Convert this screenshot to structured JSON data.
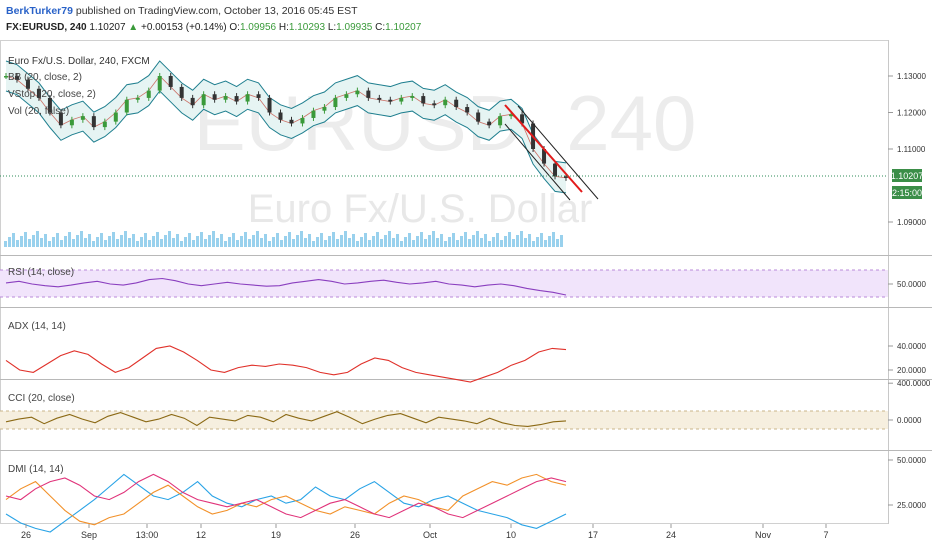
{
  "header": {
    "author": "BerkTurker79",
    "published_text": "published on TradingView.com, October 13, 2016 05:45 EST",
    "symbol": "FX:EURUSD, 240",
    "last": "1.10207",
    "change_arrow": "▲",
    "change": "+0.00153 (+0.14%)",
    "open_label": "O:",
    "open": "1.09956",
    "high_label": "H:",
    "high": "1.10293",
    "low_label": "L:",
    "low": "1.09935",
    "close_label": "C:",
    "close": "1.10207"
  },
  "watermark": {
    "main": "EURUSD, 240",
    "sub": "Euro Fx/U.S. Dollar"
  },
  "legends": {
    "main": "Euro Fx/U.S. Dollar, 240, FXCM",
    "bb": "BB (20, close, 2)",
    "vstop": "VStop (20, close, 2)",
    "vol": "Vol (20, false)",
    "rsi": "RSI (14, close)",
    "adx": "ADX (14, 14)",
    "cci": "CCI (20, close)",
    "dmi": "DMI (14, 14)"
  },
  "price_badge": {
    "price": "1.10207",
    "countdown": "2:15:00"
  },
  "colors": {
    "up": "#3a9a3a",
    "down": "#c0392b",
    "bb": "#1f7f8f",
    "rsi": "#8a3fbf",
    "adx": "#e0312a",
    "cci": "#8b6914",
    "dmi_plus": "#29a3e6",
    "dmi_minus": "#f2912a",
    "dmi_adx": "#e0337a"
  },
  "chart_data": {
    "type": "line",
    "x_axis_labels": [
      "26",
      "Sep",
      "13:00",
      "12",
      "19",
      "26",
      "Oct",
      "10",
      "17",
      "24",
      "Nov",
      "7"
    ],
    "price": {
      "y_ticks": [
        "1.13000",
        "1.12000",
        "1.11000",
        "1.09000"
      ],
      "close": [
        1.13,
        1.129,
        1.1265,
        1.124,
        1.12,
        1.1165,
        1.118,
        1.119,
        1.116,
        1.1175,
        1.12,
        1.1235,
        1.124,
        1.126,
        1.13,
        1.127,
        1.124,
        1.122,
        1.125,
        1.1235,
        1.1245,
        1.123,
        1.125,
        1.124,
        1.12,
        1.118,
        1.117,
        1.1185,
        1.1205,
        1.1215,
        1.124,
        1.125,
        1.126,
        1.124,
        1.1235,
        1.123,
        1.124,
        1.1245,
        1.1225,
        1.122,
        1.1235,
        1.1215,
        1.12,
        1.1175,
        1.1165,
        1.119,
        1.1195,
        1.117,
        1.11,
        1.106,
        1.1025,
        1.1021
      ],
      "last": 1.10207
    },
    "rsi": {
      "y_ticks": [
        "50.0000"
      ],
      "values": [
        52,
        55,
        50,
        47,
        45,
        48,
        52,
        55,
        50,
        48,
        52,
        58,
        60,
        56,
        50,
        47,
        50,
        53,
        50,
        48,
        46,
        47,
        52,
        55,
        58,
        55,
        50,
        52,
        55,
        57,
        53,
        50,
        52,
        55,
        50,
        48,
        45,
        48,
        50,
        47,
        42,
        38,
        35,
        30
      ]
    },
    "adx": {
      "y_ticks": [
        "40.0000",
        "20.0000"
      ],
      "values": [
        28,
        20,
        18,
        25,
        32,
        36,
        33,
        25,
        18,
        22,
        30,
        38,
        40,
        35,
        28,
        20,
        18,
        22,
        24,
        23,
        25,
        24,
        22,
        18,
        16,
        18,
        25,
        30,
        28,
        22,
        18,
        16,
        14,
        12,
        10,
        14,
        18,
        24,
        28,
        35,
        38,
        37
      ]
    },
    "cci": {
      "y_ticks": [
        "400.0000",
        "0.0000"
      ],
      "values": [
        -20,
        10,
        30,
        -40,
        20,
        60,
        10,
        -30,
        40,
        80,
        30,
        -20,
        10,
        60,
        20,
        -60,
        30,
        10,
        -10,
        50,
        30,
        -20,
        60,
        20,
        -10,
        40,
        90,
        30,
        -40,
        10,
        50,
        70,
        20,
        -30,
        30,
        10,
        -10,
        -40,
        20,
        -30,
        -60,
        -70,
        -50,
        -20,
        -10
      ]
    },
    "dmi": {
      "y_ticks": [
        "50.0000",
        "25.0000"
      ],
      "plus_di": [
        20,
        15,
        12,
        10,
        16,
        22,
        28,
        35,
        42,
        36,
        30,
        28,
        32,
        38,
        30,
        26,
        24,
        28,
        30,
        26,
        28,
        35,
        30,
        28,
        34,
        38,
        32,
        26,
        24,
        28,
        30,
        26,
        22,
        20,
        18,
        14,
        12,
        16,
        20
      ],
      "minus_di": [
        28,
        34,
        38,
        30,
        22,
        16,
        14,
        18,
        20,
        26,
        32,
        36,
        30,
        24,
        20,
        22,
        26,
        24,
        28,
        30,
        26,
        22,
        20,
        24,
        22,
        20,
        26,
        30,
        28,
        24,
        22,
        30,
        34,
        38,
        36,
        40,
        42,
        38,
        36
      ],
      "adx": [
        30,
        28,
        34,
        38,
        40,
        36,
        30,
        28,
        32,
        38,
        42,
        38,
        32,
        28,
        26,
        24,
        26,
        28,
        24,
        20,
        18,
        22,
        26,
        28,
        24,
        20,
        18,
        22,
        26,
        24,
        20,
        18,
        22,
        26,
        30,
        34,
        38,
        40,
        38
      ]
    }
  }
}
